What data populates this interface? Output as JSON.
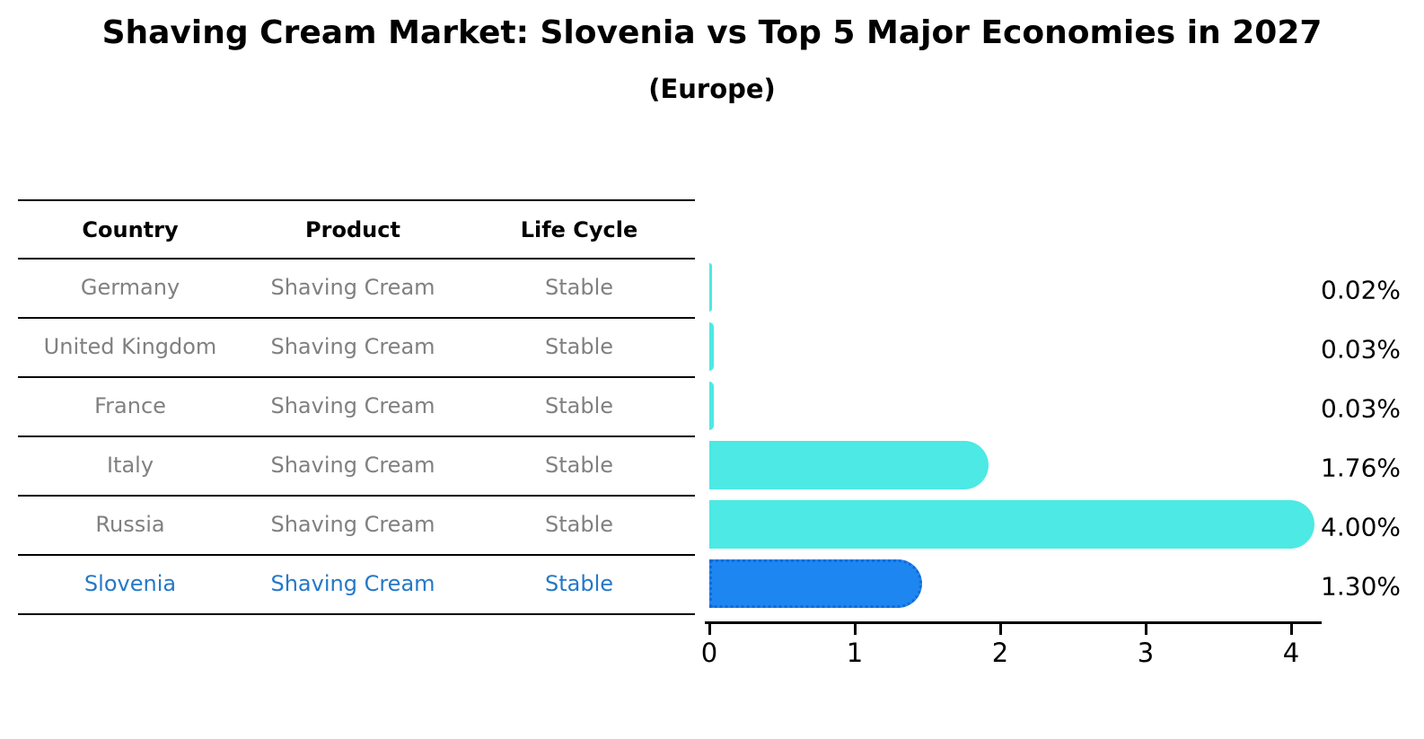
{
  "title": "Shaving Cream Market: Slovenia vs Top 5 Major Economies in 2027",
  "subtitle": "(Europe)",
  "table": {
    "headers": [
      "Country",
      "Product",
      "Life Cycle"
    ],
    "rows": [
      {
        "country": "Germany",
        "product": "Shaving Cream",
        "life_cycle": "Stable",
        "highlight": false
      },
      {
        "country": "United Kingdom",
        "product": "Shaving Cream",
        "life_cycle": "Stable",
        "highlight": false
      },
      {
        "country": "France",
        "product": "Shaving Cream",
        "life_cycle": "Stable",
        "highlight": false
      },
      {
        "country": "Italy",
        "product": "Shaving Cream",
        "life_cycle": "Stable",
        "highlight": false
      },
      {
        "country": "Russia",
        "product": "Shaving Cream",
        "life_cycle": "Stable",
        "highlight": false
      },
      {
        "country": "Slovenia",
        "product": "Shaving Cream",
        "life_cycle": "Stable",
        "highlight": true
      }
    ]
  },
  "chart_data": {
    "type": "bar",
    "orientation": "horizontal",
    "title": "Shaving Cream Market: Slovenia vs Top 5 Major Economies in 2027",
    "subtitle": "(Europe)",
    "categories": [
      "Germany",
      "United Kingdom",
      "France",
      "Italy",
      "Russia",
      "Slovenia"
    ],
    "values": [
      0.02,
      0.03,
      0.03,
      1.76,
      4.0,
      1.3
    ],
    "value_labels": [
      "0.02%",
      "0.03%",
      "0.03%",
      "1.76%",
      "4.00%",
      "1.30%"
    ],
    "x_ticks": [
      "0",
      "1",
      "2",
      "3",
      "4"
    ],
    "xlim": [
      0,
      4.3
    ],
    "grid": false,
    "legend": false,
    "highlight_index": 5
  },
  "colors": {
    "bar": "#4DE9E4",
    "highlight_bar": "#1E86F0",
    "highlight_border": "#1569D6",
    "highlight_text": "#2578C8",
    "row_text": "#808080",
    "header_text": "#000000",
    "axis": "#000000",
    "background": "#ffffff"
  }
}
